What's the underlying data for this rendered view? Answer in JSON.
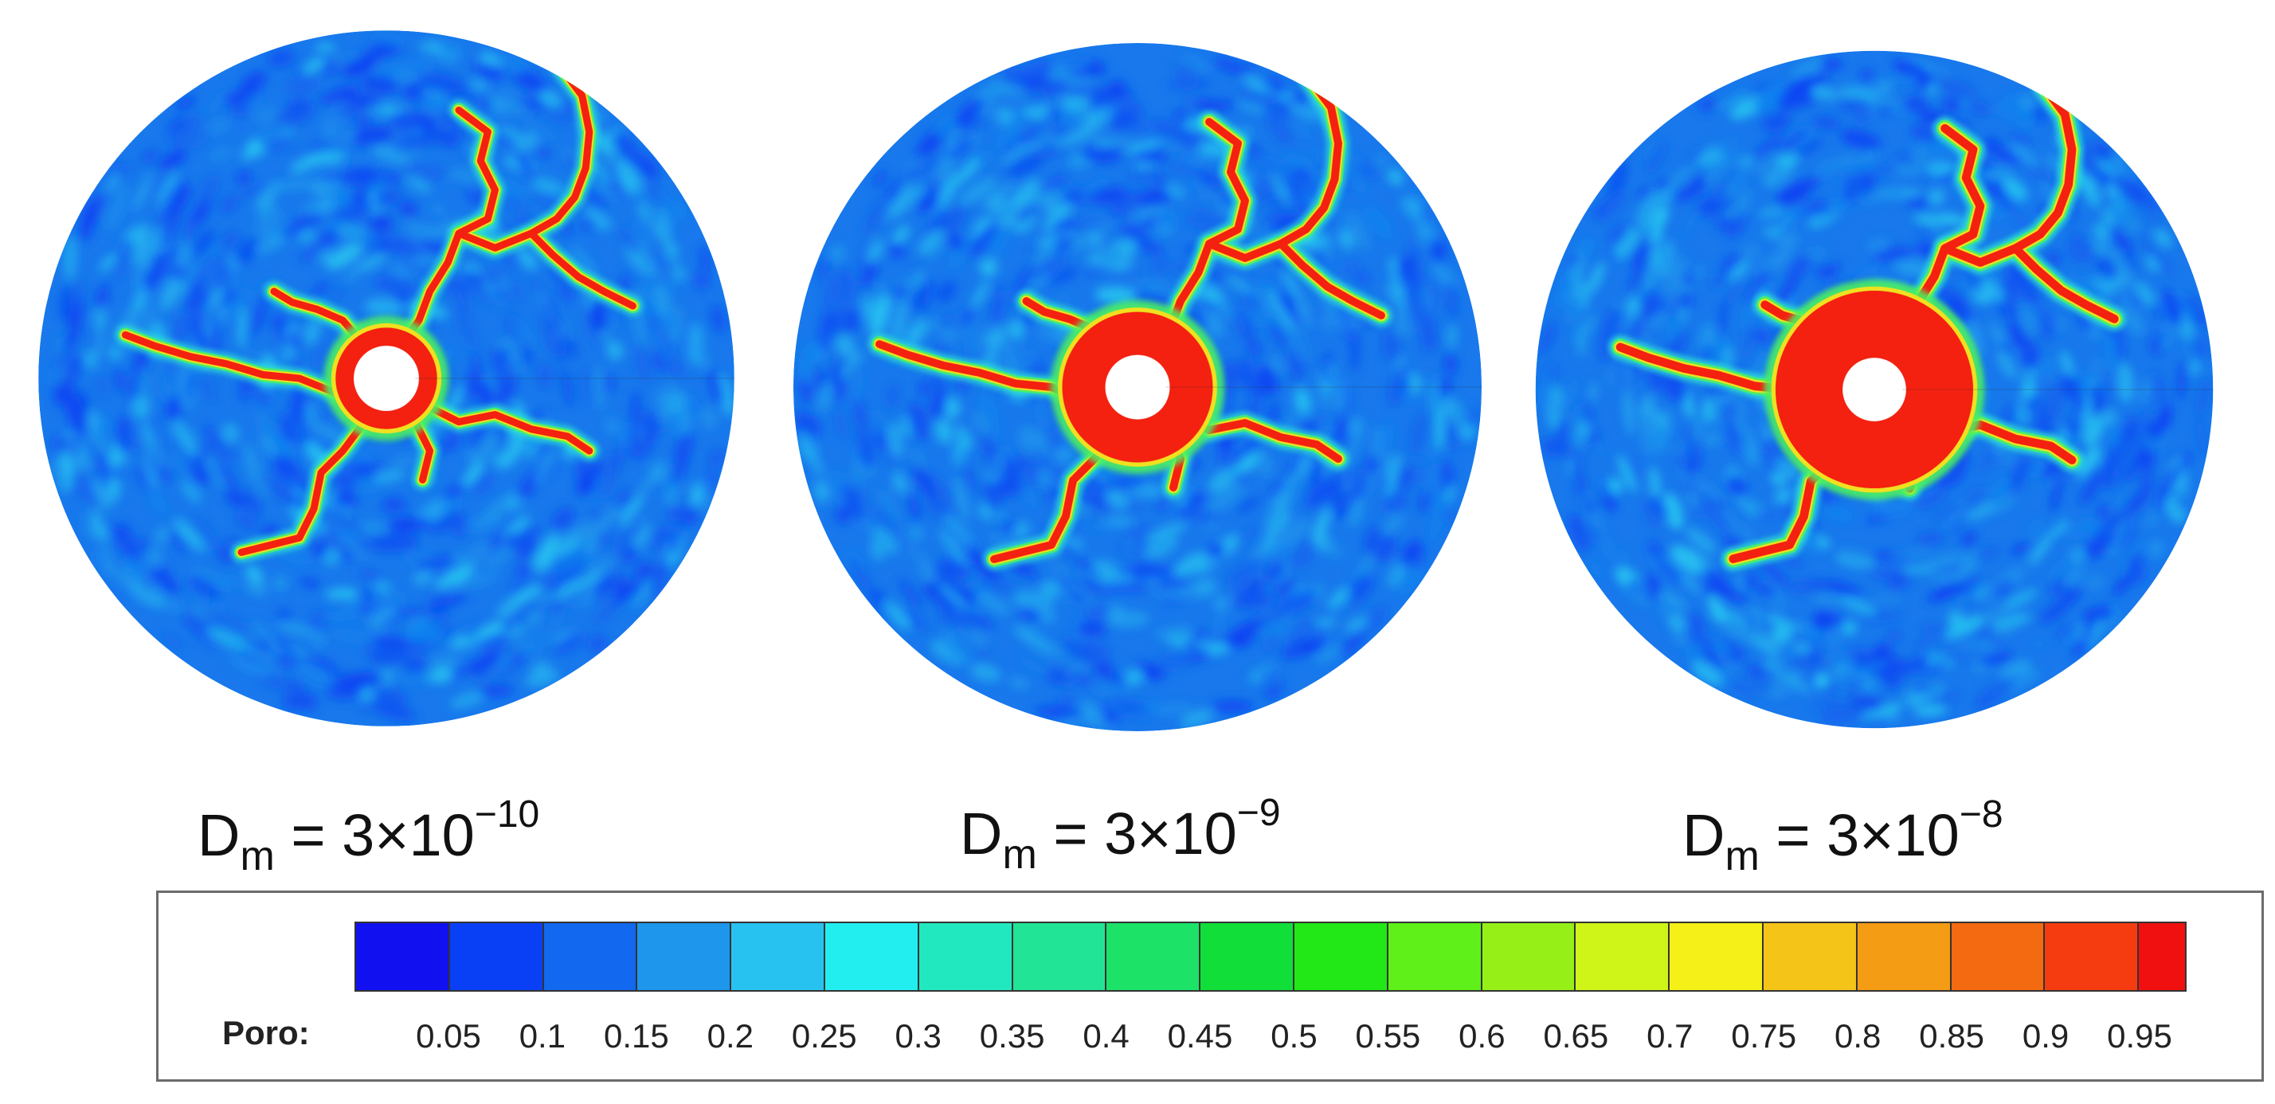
{
  "panels": [
    {
      "name": "panel-dm-3e-10",
      "label_base": "D",
      "label_sub": "m",
      "label_eq": " = 3×10",
      "label_exp": "−10",
      "intensity": 0.9
    },
    {
      "name": "panel-dm-3e-9",
      "label_base": "D",
      "label_sub": "m",
      "label_eq": " = 3×10",
      "label_exp": "−9",
      "intensity": 1.0
    },
    {
      "name": "panel-dm-3e-8",
      "label_base": "D",
      "label_sub": "m",
      "label_eq": " = 3×10",
      "label_exp": "−8",
      "intensity": 1.1
    }
  ],
  "legend": {
    "title": "Poro:",
    "ticks": [
      "0.05",
      "0.1",
      "0.15",
      "0.2",
      "0.25",
      "0.3",
      "0.35",
      "0.4",
      "0.45",
      "0.5",
      "0.55",
      "0.6",
      "0.65",
      "0.7",
      "0.75",
      "0.8",
      "0.85",
      "0.9",
      "0.95"
    ],
    "colors": [
      "#1010f0",
      "#0a40f5",
      "#1268ee",
      "#1d96ec",
      "#28c2f0",
      "#22eef0",
      "#22e8c0",
      "#22e496",
      "#1ce268",
      "#12de3a",
      "#22e818",
      "#5ef018",
      "#96f018",
      "#cef418",
      "#f4f018",
      "#f4c418",
      "#f49c14",
      "#f46a10",
      "#f43c10",
      "#f01010"
    ]
  }
}
